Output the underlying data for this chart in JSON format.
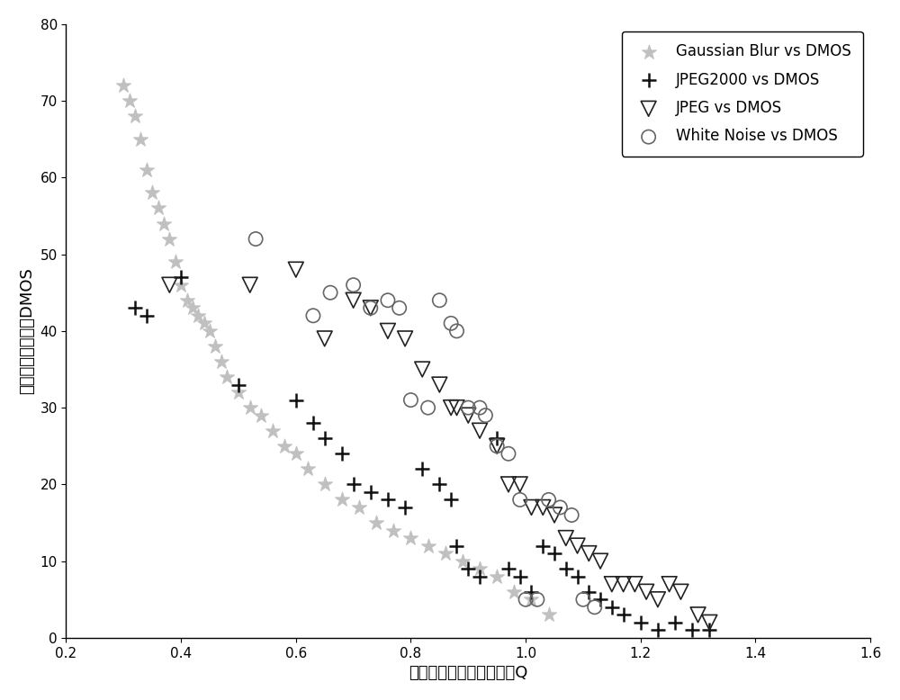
{
  "gaussian_blur": {
    "x": [
      0.3,
      0.31,
      0.32,
      0.33,
      0.34,
      0.35,
      0.36,
      0.37,
      0.38,
      0.39,
      0.4,
      0.41,
      0.42,
      0.43,
      0.44,
      0.45,
      0.46,
      0.47,
      0.48,
      0.5,
      0.52,
      0.54,
      0.56,
      0.58,
      0.6,
      0.62,
      0.65,
      0.68,
      0.71,
      0.74,
      0.77,
      0.8,
      0.83,
      0.86,
      0.89,
      0.92,
      0.95,
      0.98,
      1.01,
      1.04
    ],
    "y": [
      72,
      70,
      68,
      65,
      61,
      58,
      56,
      54,
      52,
      49,
      46,
      44,
      43,
      42,
      41,
      40,
      38,
      36,
      34,
      32,
      30,
      29,
      27,
      25,
      24,
      22,
      20,
      18,
      17,
      15,
      14,
      13,
      12,
      11,
      10,
      9,
      8,
      6,
      5,
      3
    ],
    "color": "#c0c0c0",
    "marker": "*",
    "label": "Gaussian Blur vs DMOS",
    "markersize": 12
  },
  "jpeg2000": {
    "x": [
      0.32,
      0.34,
      0.4,
      0.5,
      0.6,
      0.63,
      0.65,
      0.68,
      0.7,
      0.73,
      0.76,
      0.79,
      0.82,
      0.85,
      0.87,
      0.88,
      0.9,
      0.92,
      0.95,
      0.97,
      0.99,
      1.01,
      1.03,
      1.05,
      1.07,
      1.09,
      1.11,
      1.13,
      1.15,
      1.17,
      1.2,
      1.23,
      1.26,
      1.29,
      1.32
    ],
    "y": [
      43,
      42,
      47,
      33,
      31,
      28,
      26,
      24,
      20,
      19,
      18,
      17,
      22,
      20,
      18,
      12,
      9,
      8,
      26,
      9,
      8,
      6,
      12,
      11,
      9,
      8,
      6,
      5,
      4,
      3,
      2,
      1,
      2,
      1,
      1
    ],
    "color": "#111111",
    "marker": "+",
    "label": "JPEG2000 vs DMOS",
    "markersize": 12
  },
  "jpeg": {
    "x": [
      0.38,
      0.52,
      0.6,
      0.65,
      0.7,
      0.73,
      0.76,
      0.79,
      0.82,
      0.85,
      0.87,
      0.88,
      0.9,
      0.92,
      0.95,
      0.97,
      0.99,
      1.01,
      1.03,
      1.05,
      1.07,
      1.09,
      1.11,
      1.13,
      1.15,
      1.17,
      1.19,
      1.21,
      1.23,
      1.25,
      1.27,
      1.3,
      1.32
    ],
    "y": [
      46,
      46,
      48,
      39,
      44,
      43,
      40,
      39,
      35,
      33,
      30,
      30,
      29,
      27,
      25,
      20,
      20,
      17,
      17,
      16,
      13,
      12,
      11,
      10,
      7,
      7,
      7,
      6,
      5,
      7,
      6,
      3,
      2
    ],
    "color": "#222222",
    "marker": "v",
    "label": "JPEG vs DMOS",
    "markersize": 9
  },
  "white_noise": {
    "x": [
      0.53,
      0.63,
      0.66,
      0.7,
      0.73,
      0.76,
      0.78,
      0.8,
      0.83,
      0.85,
      0.87,
      0.88,
      0.9,
      0.92,
      0.93,
      0.95,
      0.97,
      0.99,
      1.0,
      1.02,
      1.04,
      1.06,
      1.08,
      1.1,
      1.12
    ],
    "y": [
      52,
      42,
      45,
      46,
      43,
      44,
      43,
      31,
      30,
      44,
      41,
      40,
      30,
      30,
      29,
      25,
      24,
      18,
      5,
      5,
      18,
      17,
      16,
      5,
      4
    ],
    "color": "#666666",
    "marker": "o",
    "label": "White Noise vs DMOS",
    "markersize": 9
  },
  "xlim": [
    0.2,
    1.6
  ],
  "ylim": [
    0,
    80
  ],
  "xticks": [
    0.2,
    0.4,
    0.6,
    0.8,
    1.0,
    1.2,
    1.4,
    1.6
  ],
  "yticks": [
    0,
    10,
    20,
    30,
    40,
    50,
    60,
    70,
    80
  ],
  "xlabel": "客观图像质量评价预测値Q",
  "ylabel": "平均主观评分差値DMOS",
  "figsize": [
    10.0,
    7.78
  ],
  "dpi": 100,
  "background": "#ffffff",
  "legend_fontsize": 12,
  "axis_fontsize": 13,
  "tick_fontsize": 11
}
